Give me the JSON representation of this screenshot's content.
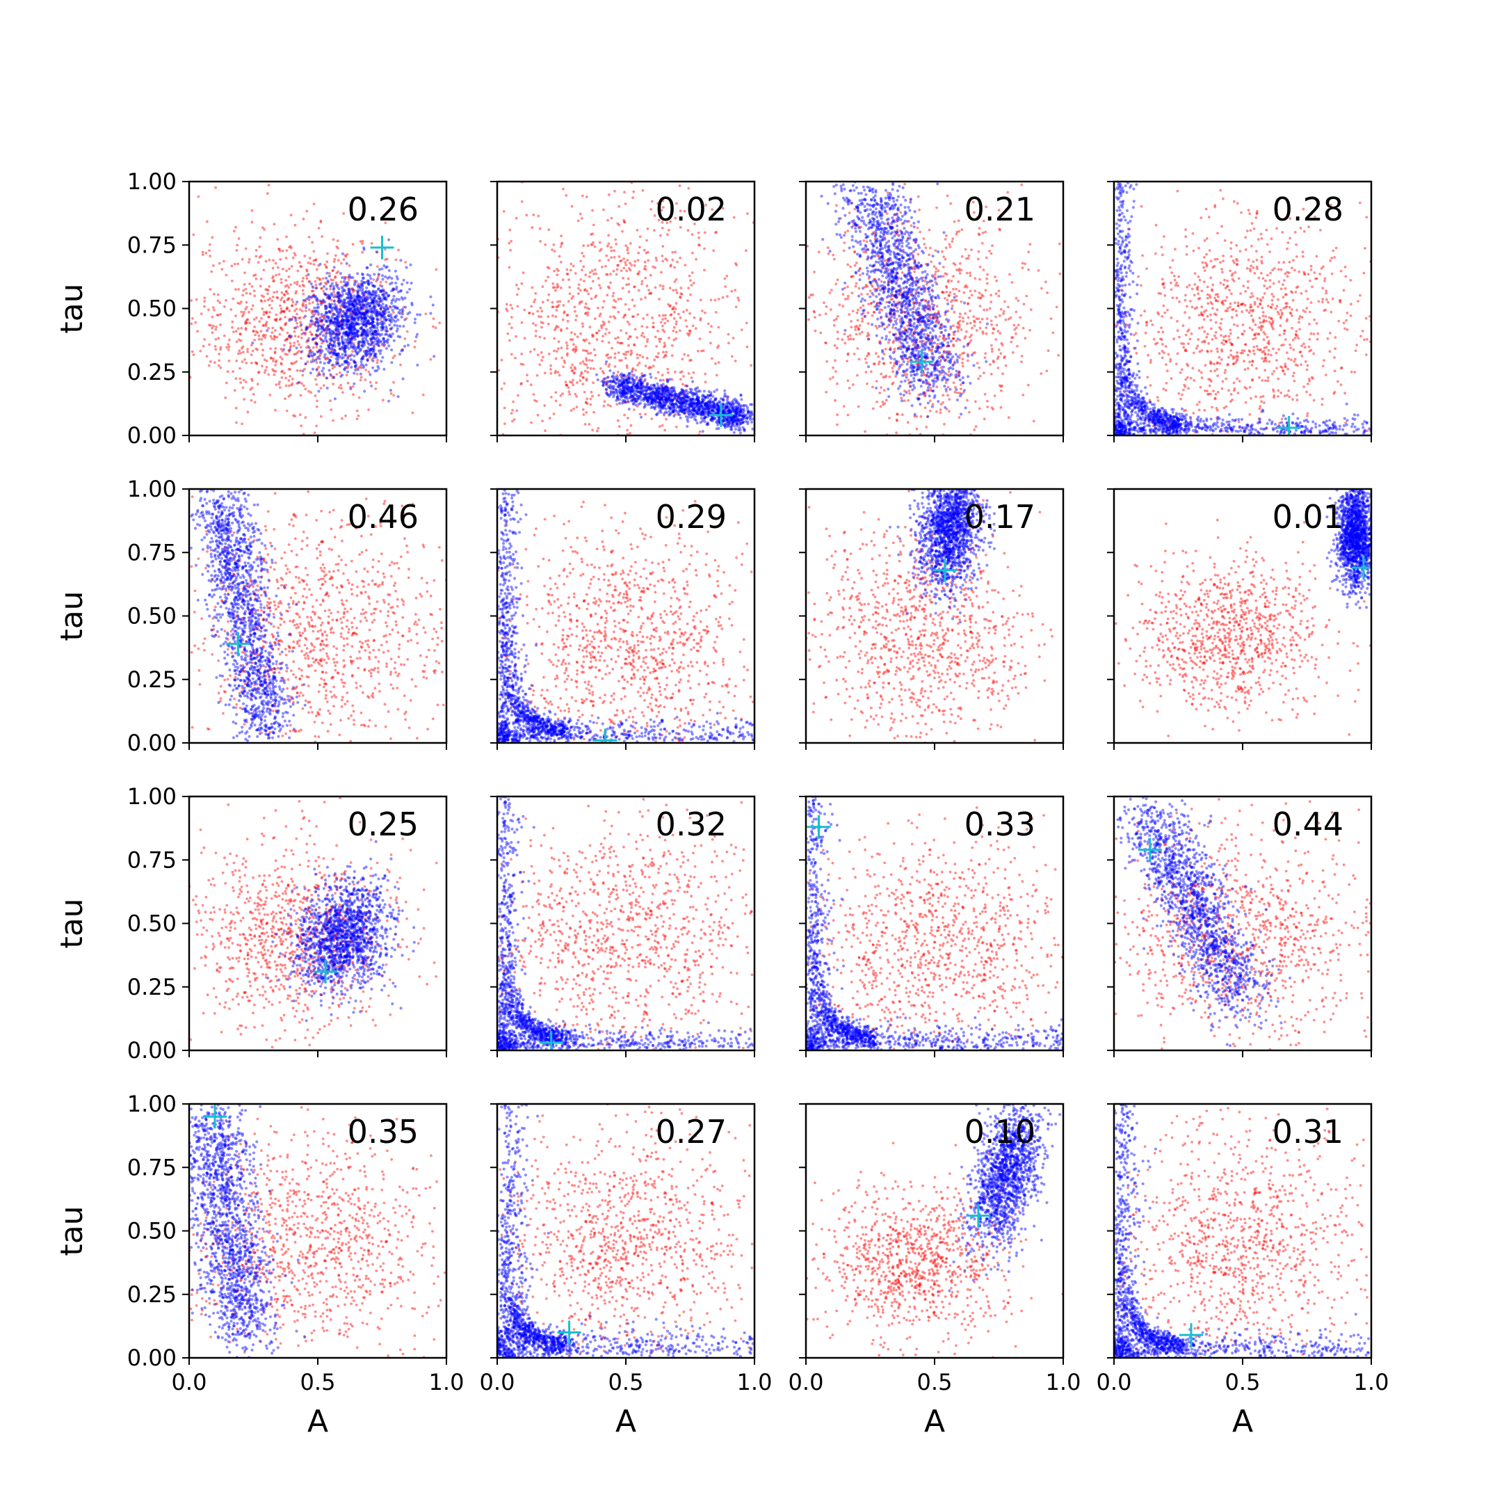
{
  "figure": {
    "xlabel": "A",
    "ylabel": "tau",
    "xticks": [
      "0.0",
      "0.5",
      "1.0"
    ],
    "yticks": [
      "0.00",
      "0.25",
      "0.50",
      "0.75",
      "1.00"
    ]
  },
  "colors": {
    "prior": "#ff0000",
    "posterior": "#0000ff",
    "true_marker": "#17becf"
  },
  "chart_data": [
    {
      "type": "scatter",
      "annotation": "0.26",
      "xlim": [
        0,
        1
      ],
      "ylim": [
        0,
        1
      ],
      "true_value": [
        0.75,
        0.74
      ],
      "red_cloud": {
        "center": [
          0.42,
          0.45
        ],
        "spread": [
          0.2,
          0.18
        ]
      },
      "blue_cloud": {
        "center": [
          0.65,
          0.45
        ],
        "spread": [
          0.11,
          0.13
        ],
        "rot": -0.9
      }
    },
    {
      "type": "scatter",
      "annotation": "0.02",
      "xlim": [
        0,
        1
      ],
      "ylim": [
        0,
        1
      ],
      "true_value": [
        0.87,
        0.08
      ],
      "red_cloud": {
        "center": [
          0.45,
          0.45
        ],
        "spread": [
          0.25,
          0.25
        ]
      },
      "blue_cloud": {
        "shape": "band",
        "from": [
          0.45,
          0.2
        ],
        "to": [
          0.97,
          0.07
        ],
        "width": 0.03
      }
    },
    {
      "type": "scatter",
      "annotation": "0.21",
      "xlim": [
        0,
        1
      ],
      "ylim": [
        0,
        1
      ],
      "true_value": [
        0.45,
        0.29
      ],
      "red_cloud": {
        "center": [
          0.45,
          0.45
        ],
        "spread": [
          0.22,
          0.22
        ]
      },
      "blue_cloud": {
        "shape": "band",
        "from": [
          0.25,
          0.95
        ],
        "to": [
          0.5,
          0.2
        ],
        "width": 0.07
      }
    },
    {
      "type": "scatter",
      "annotation": "0.28",
      "xlim": [
        0,
        1
      ],
      "ylim": [
        0,
        1
      ],
      "true_value": [
        0.68,
        0.03
      ],
      "red_cloud": {
        "center": [
          0.5,
          0.45
        ],
        "spread": [
          0.25,
          0.22
        ]
      },
      "blue_cloud": {
        "shape": "L",
        "corner": [
          0.02,
          0.02
        ],
        "width": 0.03
      }
    },
    {
      "type": "scatter",
      "annotation": "0.46",
      "xlim": [
        0,
        1
      ],
      "ylim": [
        0,
        1
      ],
      "true_value": [
        0.19,
        0.39
      ],
      "red_cloud": {
        "center": [
          0.5,
          0.45
        ],
        "spread": [
          0.25,
          0.22
        ]
      },
      "blue_cloud": {
        "shape": "band",
        "from": [
          0.12,
          0.98
        ],
        "to": [
          0.3,
          0.05
        ],
        "width": 0.06
      }
    },
    {
      "type": "scatter",
      "annotation": "0.29",
      "xlim": [
        0,
        1
      ],
      "ylim": [
        0,
        1
      ],
      "true_value": [
        0.42,
        0.01
      ],
      "red_cloud": {
        "center": [
          0.5,
          0.4
        ],
        "spread": [
          0.23,
          0.22
        ]
      },
      "blue_cloud": {
        "shape": "L",
        "corner": [
          0.02,
          0.02
        ],
        "width": 0.04
      }
    },
    {
      "type": "scatter",
      "annotation": "0.17",
      "xlim": [
        0,
        1
      ],
      "ylim": [
        0,
        1
      ],
      "true_value": [
        0.54,
        0.68
      ],
      "red_cloud": {
        "center": [
          0.45,
          0.42
        ],
        "spread": [
          0.22,
          0.22
        ]
      },
      "blue_cloud": {
        "center": [
          0.56,
          0.85
        ],
        "spread": [
          0.06,
          0.12
        ],
        "rot": -0.2
      }
    },
    {
      "type": "scatter",
      "annotation": "0.01",
      "xlim": [
        0,
        1
      ],
      "ylim": [
        0,
        1
      ],
      "true_value": [
        0.97,
        0.69
      ],
      "red_cloud": {
        "center": [
          0.45,
          0.42
        ],
        "spread": [
          0.18,
          0.15
        ]
      },
      "blue_cloud": {
        "center": [
          0.94,
          0.82
        ],
        "spread": [
          0.035,
          0.1
        ],
        "rot": 0
      }
    },
    {
      "type": "scatter",
      "annotation": "0.25",
      "xlim": [
        0,
        1
      ],
      "ylim": [
        0,
        1
      ],
      "true_value": [
        0.53,
        0.31
      ],
      "red_cloud": {
        "center": [
          0.4,
          0.45
        ],
        "spread": [
          0.2,
          0.18
        ]
      },
      "blue_cloud": {
        "center": [
          0.6,
          0.45
        ],
        "spread": [
          0.1,
          0.13
        ],
        "rot": -0.7
      }
    },
    {
      "type": "scatter",
      "annotation": "0.32",
      "xlim": [
        0,
        1
      ],
      "ylim": [
        0,
        1
      ],
      "true_value": [
        0.21,
        0.03
      ],
      "red_cloud": {
        "center": [
          0.5,
          0.45
        ],
        "spread": [
          0.25,
          0.22
        ]
      },
      "blue_cloud": {
        "shape": "L",
        "corner": [
          0.02,
          0.02
        ],
        "width": 0.035
      }
    },
    {
      "type": "scatter",
      "annotation": "0.33",
      "xlim": [
        0,
        1
      ],
      "ylim": [
        0,
        1
      ],
      "true_value": [
        0.05,
        0.88
      ],
      "red_cloud": {
        "center": [
          0.5,
          0.42
        ],
        "spread": [
          0.25,
          0.22
        ]
      },
      "blue_cloud": {
        "shape": "L",
        "corner": [
          0.02,
          0.02
        ],
        "width": 0.04
      }
    },
    {
      "type": "scatter",
      "annotation": "0.44",
      "xlim": [
        0,
        1
      ],
      "ylim": [
        0,
        1
      ],
      "true_value": [
        0.14,
        0.79
      ],
      "red_cloud": {
        "center": [
          0.5,
          0.45
        ],
        "spread": [
          0.25,
          0.22
        ]
      },
      "blue_cloud": {
        "shape": "band",
        "from": [
          0.12,
          0.95
        ],
        "to": [
          0.5,
          0.2
        ],
        "width": 0.07
      }
    },
    {
      "type": "scatter",
      "annotation": "0.35",
      "xlim": [
        0,
        1
      ],
      "ylim": [
        0,
        1
      ],
      "true_value": [
        0.1,
        0.95
      ],
      "red_cloud": {
        "center": [
          0.5,
          0.45
        ],
        "spread": [
          0.25,
          0.22
        ]
      },
      "blue_cloud": {
        "shape": "band",
        "from": [
          0.08,
          0.97
        ],
        "to": [
          0.22,
          0.1
        ],
        "width": 0.07
      }
    },
    {
      "type": "scatter",
      "annotation": "0.27",
      "xlim": [
        0,
        1
      ],
      "ylim": [
        0,
        1
      ],
      "true_value": [
        0.28,
        0.1
      ],
      "red_cloud": {
        "center": [
          0.5,
          0.45
        ],
        "spread": [
          0.23,
          0.22
        ]
      },
      "blue_cloud": {
        "shape": "L",
        "corner": [
          0.04,
          0.03
        ],
        "width": 0.05
      }
    },
    {
      "type": "scatter",
      "annotation": "0.10",
      "xlim": [
        0,
        1
      ],
      "ylim": [
        0,
        1
      ],
      "true_value": [
        0.67,
        0.56
      ],
      "red_cloud": {
        "center": [
          0.42,
          0.38
        ],
        "spread": [
          0.18,
          0.15
        ]
      },
      "blue_cloud": {
        "center": [
          0.78,
          0.73
        ],
        "spread": [
          0.06,
          0.15
        ],
        "rot": -0.4
      }
    },
    {
      "type": "scatter",
      "annotation": "0.31",
      "xlim": [
        0,
        1
      ],
      "ylim": [
        0,
        1
      ],
      "true_value": [
        0.3,
        0.09
      ],
      "red_cloud": {
        "center": [
          0.5,
          0.45
        ],
        "spread": [
          0.24,
          0.22
        ]
      },
      "blue_cloud": {
        "shape": "L",
        "corner": [
          0.02,
          0.02
        ],
        "width": 0.04
      }
    }
  ]
}
